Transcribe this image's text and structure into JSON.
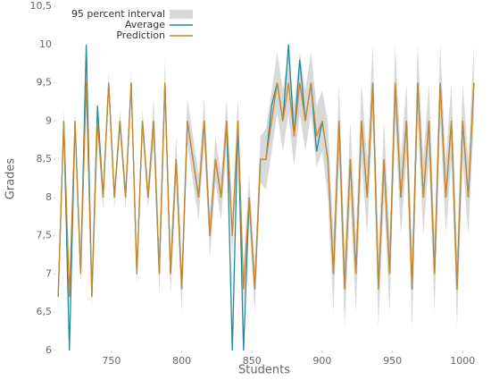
{
  "chart_data": {
    "type": "line",
    "xlabel": "Students",
    "ylabel": "Grades",
    "x": [
      712,
      716,
      720,
      724,
      728,
      732,
      736,
      740,
      744,
      748,
      752,
      756,
      760,
      764,
      768,
      772,
      776,
      780,
      784,
      788,
      792,
      796,
      800,
      804,
      808,
      812,
      816,
      820,
      824,
      828,
      832,
      836,
      840,
      844,
      848,
      852,
      856,
      860,
      864,
      868,
      872,
      876,
      880,
      884,
      888,
      892,
      896,
      900,
      904,
      908,
      912,
      916,
      920,
      924,
      928,
      932,
      936,
      940,
      944,
      948,
      952,
      956,
      960,
      964,
      968,
      972,
      976,
      980,
      984,
      988,
      992,
      996,
      1000,
      1004,
      1008
    ],
    "band": {
      "name": "95 percent interval",
      "color": "#d9d9d9",
      "lower": [
        6.55,
        8.85,
        6.55,
        8.85,
        6.85,
        9.35,
        6.55,
        8.85,
        7.85,
        9.35,
        7.85,
        8.85,
        7.85,
        9.35,
        6.85,
        8.85,
        7.85,
        8.7,
        6.7,
        9.2,
        6.7,
        8.2,
        6.5,
        8.7,
        8.2,
        7.7,
        8.7,
        7.2,
        8.2,
        7.7,
        8.7,
        7.2,
        8.7,
        6.5,
        7.7,
        6.5,
        8.2,
        8.1,
        8.6,
        9.1,
        8.6,
        9.1,
        8.4,
        9.1,
        8.6,
        9.1,
        8.4,
        8.6,
        8.0,
        6.5,
        8.5,
        6.3,
        8.0,
        6.5,
        8.5,
        7.5,
        9.0,
        6.3,
        8.0,
        6.5,
        9.0,
        7.5,
        8.5,
        6.3,
        9.0,
        7.5,
        8.5,
        6.5,
        9.0,
        7.5,
        8.5,
        6.3,
        8.5,
        7.5,
        9.0
      ],
      "upper": [
        6.85,
        9.15,
        6.85,
        9.15,
        7.15,
        9.65,
        6.85,
        9.15,
        8.15,
        9.65,
        8.15,
        9.15,
        8.15,
        9.65,
        7.15,
        9.15,
        8.15,
        9.3,
        7.3,
        9.8,
        7.3,
        8.8,
        7.1,
        9.3,
        8.8,
        8.3,
        9.3,
        7.8,
        8.8,
        8.3,
        9.3,
        7.8,
        9.3,
        7.1,
        8.3,
        7.1,
        8.8,
        8.9,
        9.4,
        9.9,
        9.4,
        9.9,
        9.2,
        9.9,
        9.4,
        9.9,
        9.2,
        9.4,
        9.0,
        7.5,
        9.5,
        7.3,
        9.0,
        7.5,
        9.5,
        8.5,
        10.0,
        7.3,
        9.0,
        7.5,
        10.0,
        8.5,
        9.5,
        7.3,
        10.0,
        8.5,
        9.5,
        7.5,
        10.0,
        8.5,
        9.5,
        7.3,
        9.5,
        8.5,
        10.0
      ]
    },
    "series": [
      {
        "name": "Average",
        "color": "#1f8a9a",
        "values": [
          6.7,
          9.0,
          6.0,
          9.0,
          7.0,
          10.0,
          6.7,
          9.2,
          8.0,
          9.5,
          8.0,
          9.0,
          8.0,
          9.5,
          7.0,
          9.0,
          8.0,
          9.0,
          7.0,
          9.5,
          7.0,
          8.5,
          6.8,
          9.0,
          8.5,
          8.0,
          9.0,
          7.5,
          8.5,
          8.0,
          9.0,
          6.0,
          9.0,
          6.0,
          8.0,
          6.8,
          8.5,
          8.5,
          9.2,
          9.5,
          9.0,
          10.0,
          8.8,
          9.8,
          9.0,
          9.5,
          8.6,
          9.0,
          8.5,
          7.0,
          9.0,
          6.8,
          8.5,
          7.0,
          9.0,
          8.0,
          9.5,
          6.8,
          8.5,
          7.0,
          9.5,
          8.0,
          9.0,
          6.8,
          9.5,
          8.0,
          9.0,
          7.0,
          9.5,
          8.0,
          9.0,
          6.8,
          9.0,
          8.0,
          9.5
        ]
      },
      {
        "name": "Prediction",
        "color": "#c9862b",
        "values": [
          6.7,
          9.0,
          6.7,
          9.0,
          7.0,
          9.5,
          6.7,
          9.0,
          8.0,
          9.5,
          8.0,
          9.0,
          8.0,
          9.5,
          7.0,
          9.0,
          8.0,
          9.0,
          7.0,
          9.5,
          7.0,
          8.5,
          6.8,
          9.0,
          8.5,
          8.0,
          9.0,
          7.5,
          8.5,
          8.0,
          9.0,
          7.5,
          9.0,
          6.8,
          8.0,
          6.8,
          8.5,
          8.5,
          9.0,
          9.5,
          9.0,
          9.5,
          8.8,
          9.5,
          9.0,
          9.5,
          8.8,
          9.0,
          8.5,
          7.0,
          9.0,
          6.8,
          8.5,
          7.0,
          9.0,
          8.0,
          9.5,
          6.8,
          8.5,
          7.0,
          9.5,
          8.0,
          9.0,
          6.8,
          9.5,
          8.0,
          9.0,
          7.0,
          9.5,
          8.0,
          9.0,
          6.8,
          9.0,
          8.0,
          9.5
        ]
      }
    ],
    "xlim": [
      710,
      1017
    ],
    "xticks": [
      750,
      800,
      850,
      900,
      950,
      1000
    ],
    "ylim": [
      6,
      10.5
    ],
    "yticks": [
      6,
      {
        "value": 6.5,
        "label": "6,5"
      },
      7,
      {
        "value": 7.5,
        "label": "7,5"
      },
      8,
      {
        "value": 8.5,
        "label": "8,5"
      },
      9,
      {
        "value": 9.5,
        "label": "9,5"
      },
      10,
      {
        "value": 10.5,
        "label": "10,5"
      }
    ],
    "grid": false,
    "legend": "upper left"
  }
}
